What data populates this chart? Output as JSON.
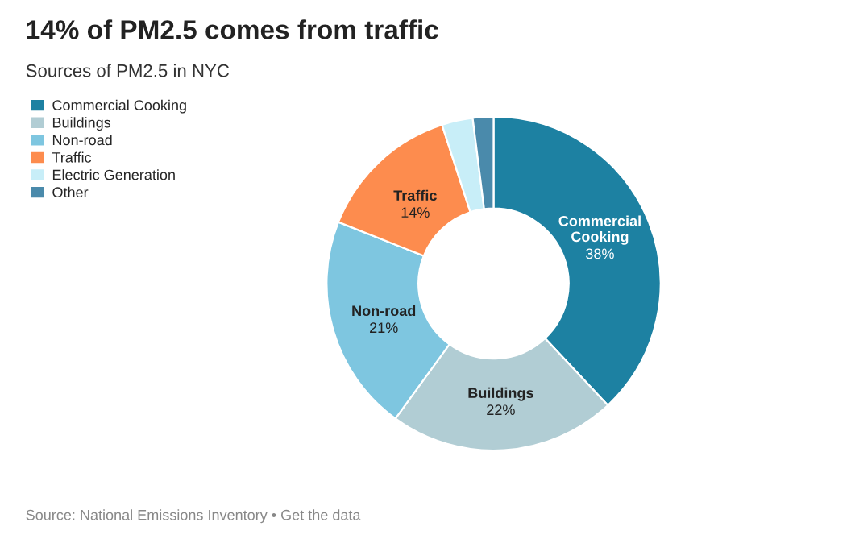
{
  "chart_data": {
    "type": "donut",
    "title": "14% of PM2.5 comes from traffic",
    "subtitle": "Sources of PM2.5 in NYC",
    "categories": [
      "Commercial Cooking",
      "Buildings",
      "Non-road",
      "Traffic",
      "Electric Generation",
      "Other"
    ],
    "values": [
      38,
      22,
      21,
      14,
      3,
      2
    ],
    "colors": [
      "#1d81a2",
      "#b1cdd4",
      "#7ec6e0",
      "#fd8c4e",
      "#c8eef8",
      "#4a8aab"
    ],
    "value_labels": [
      "38%",
      "22%",
      "21%",
      "14%",
      null,
      null
    ],
    "legend": "top left",
    "annotations": [
      "Source: National Emissions Inventory • Get the data"
    ]
  }
}
